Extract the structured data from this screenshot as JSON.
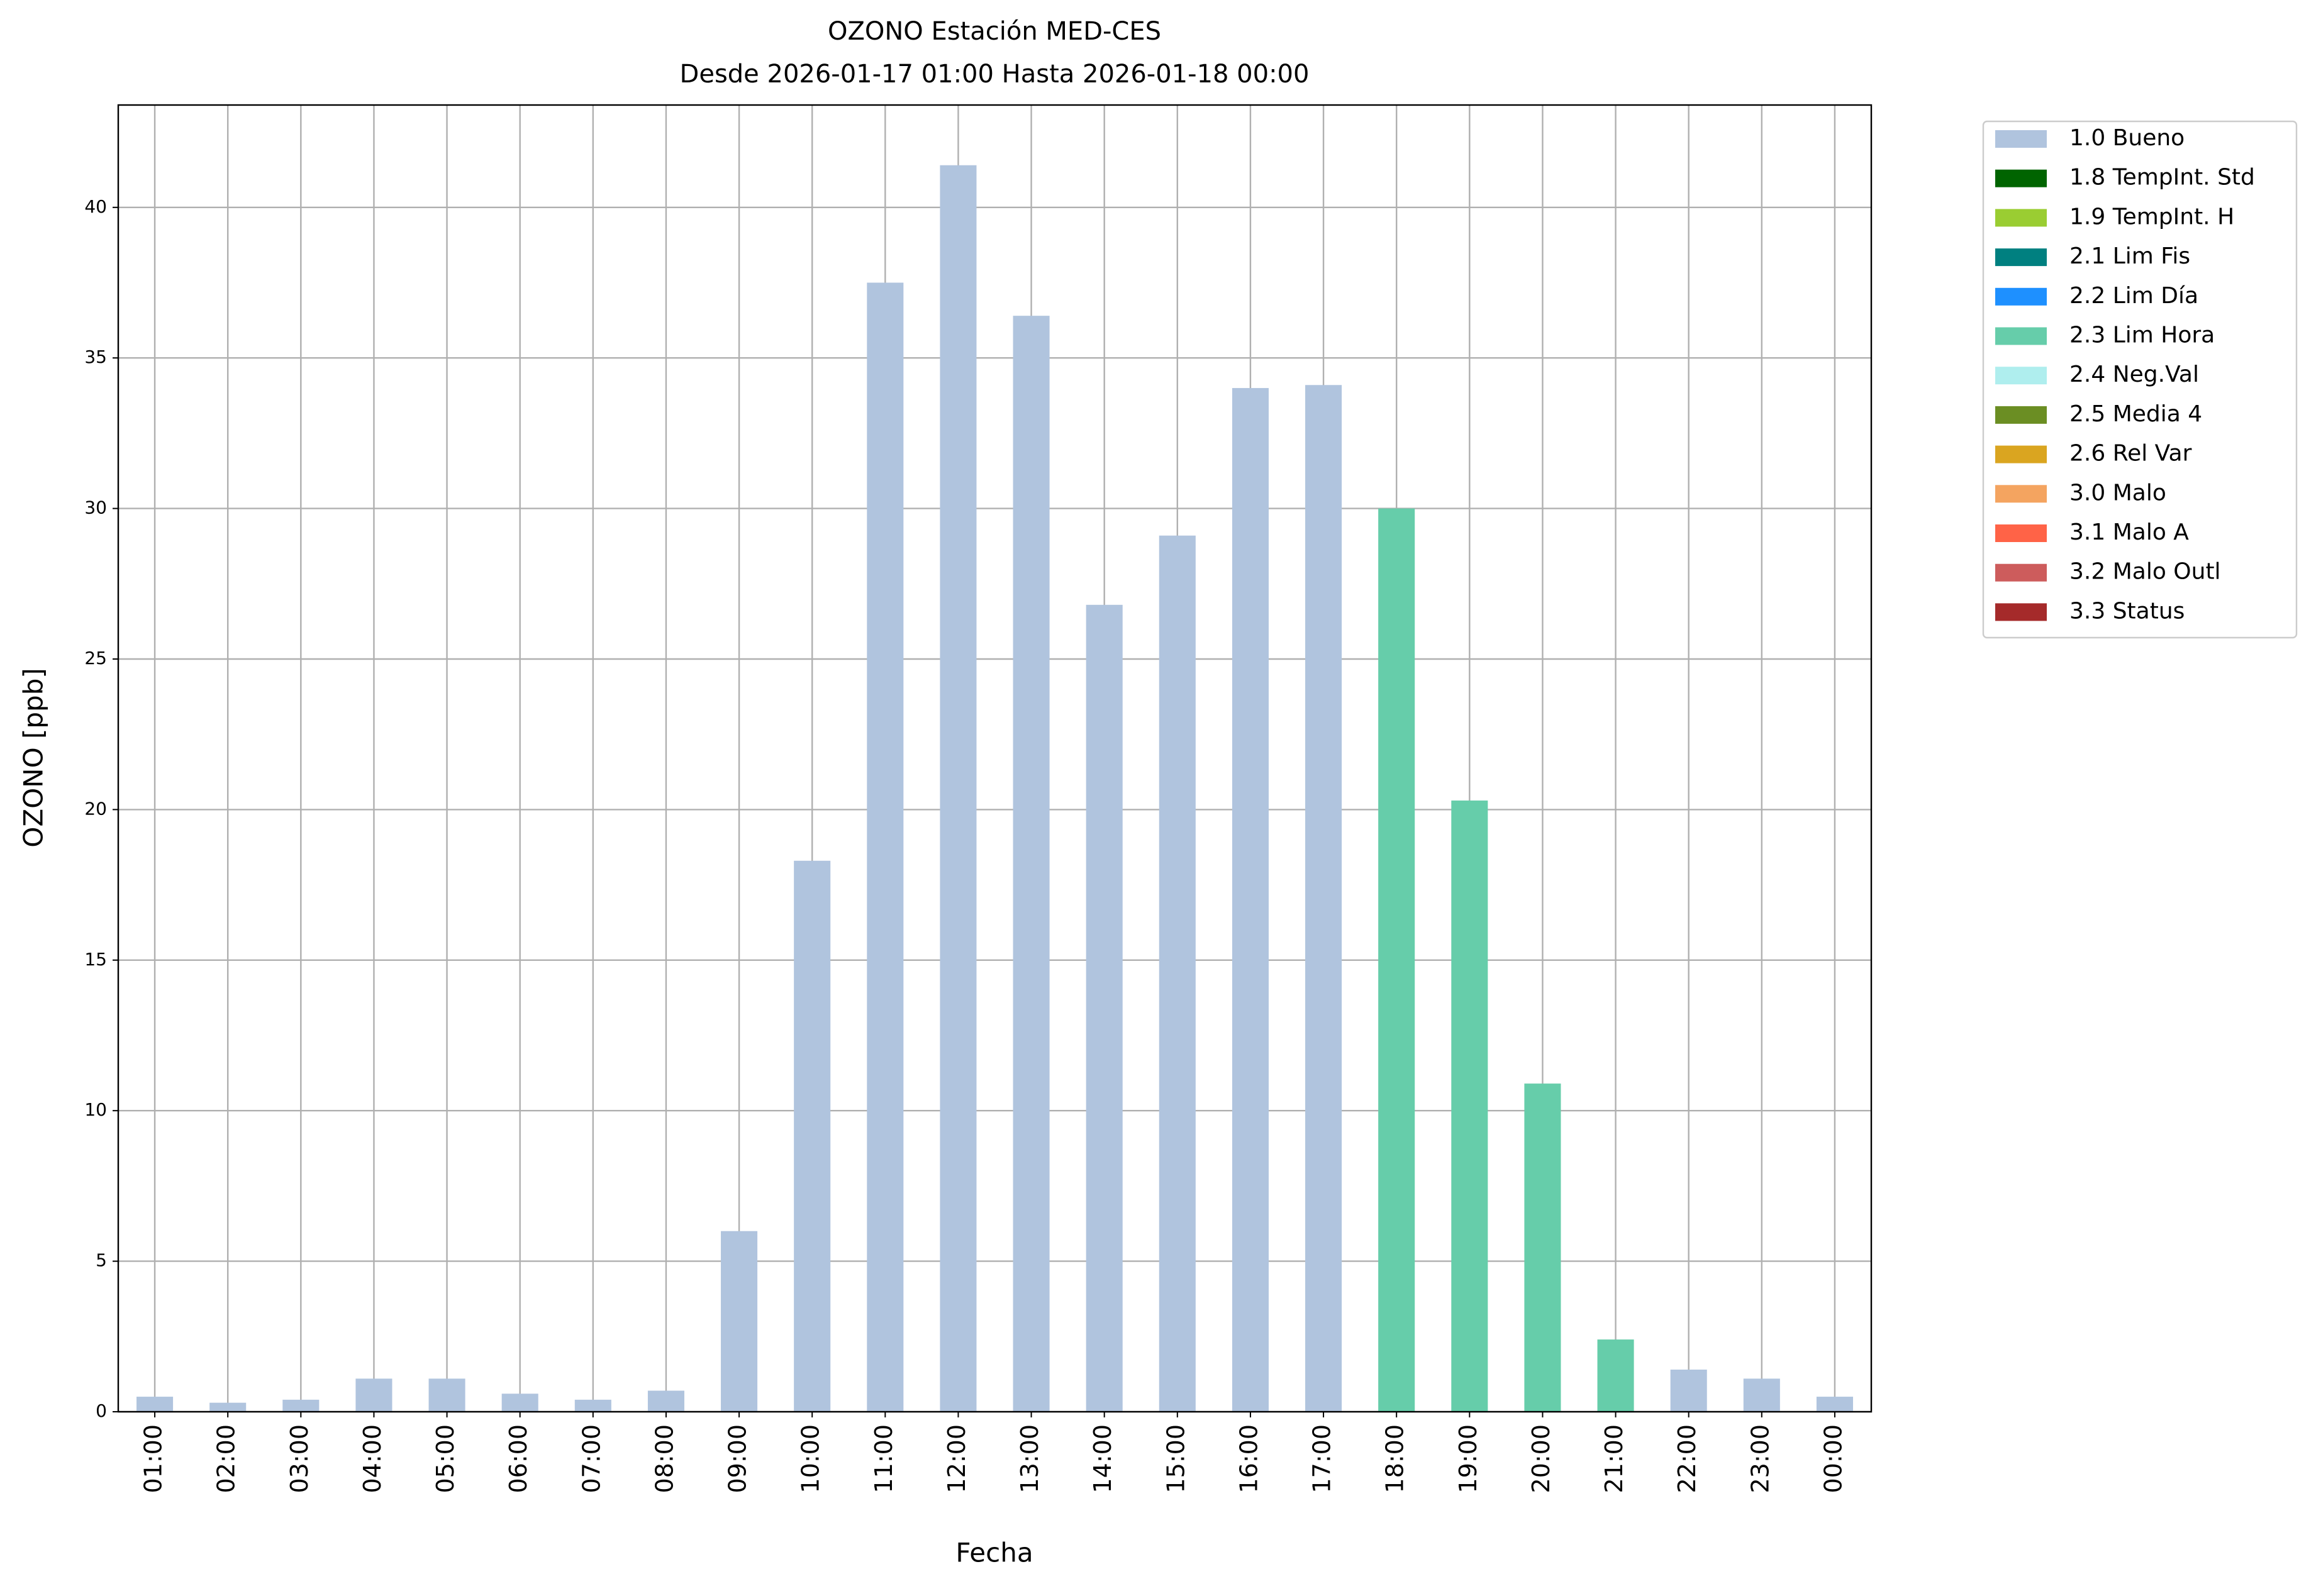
{
  "chart_data": {
    "type": "bar",
    "stacked": true,
    "title": "OZONO Estación MED-CES",
    "subtitle": "Desde 2026-01-17 01:00 Hasta 2026-01-18 00:00",
    "x_label": "Fecha",
    "y_label": "OZONO [ppb]",
    "categories": [
      "01:00",
      "02:00",
      "03:00",
      "04:00",
      "05:00",
      "06:00",
      "07:00",
      "08:00",
      "09:00",
      "10:00",
      "11:00",
      "12:00",
      "13:00",
      "14:00",
      "15:00",
      "16:00",
      "17:00",
      "18:00",
      "19:00",
      "20:00",
      "21:00",
      "22:00",
      "23:00",
      "00:00"
    ],
    "series": [
      {
        "name": "1.0 Bueno",
        "color": "#b0c4de",
        "values": [
          0.5,
          0.3,
          0.4,
          1.1,
          1.1,
          0.6,
          0.4,
          0.7,
          6.0,
          18.3,
          37.5,
          41.4,
          36.4,
          26.8,
          29.1,
          34.0,
          34.1,
          null,
          null,
          null,
          null,
          1.4,
          1.1,
          0.5
        ]
      },
      {
        "name": "1.8 TempInt. Std",
        "color": "#006400",
        "values": [
          null,
          null,
          null,
          null,
          null,
          null,
          null,
          null,
          null,
          null,
          null,
          null,
          null,
          null,
          null,
          null,
          null,
          null,
          null,
          null,
          null,
          null,
          null,
          null
        ]
      },
      {
        "name": "1.9 TempInt. H",
        "color": "#9acd32",
        "values": [
          null,
          null,
          null,
          null,
          null,
          null,
          null,
          null,
          null,
          null,
          null,
          null,
          null,
          null,
          null,
          null,
          null,
          null,
          null,
          null,
          null,
          null,
          null,
          null
        ]
      },
      {
        "name": "2.1 Lim Fis",
        "color": "#008080",
        "values": [
          null,
          null,
          null,
          null,
          null,
          null,
          null,
          null,
          null,
          null,
          null,
          null,
          null,
          null,
          null,
          null,
          null,
          null,
          null,
          null,
          null,
          null,
          null,
          null
        ]
      },
      {
        "name": "2.2 Lim Día",
        "color": "#1e90ff",
        "values": [
          null,
          null,
          null,
          null,
          null,
          null,
          null,
          null,
          null,
          null,
          null,
          null,
          null,
          null,
          null,
          null,
          null,
          null,
          null,
          null,
          null,
          null,
          null,
          null
        ]
      },
      {
        "name": "2.3 Lim Hora",
        "color": "#66cdaa",
        "values": [
          null,
          null,
          null,
          null,
          null,
          null,
          null,
          null,
          null,
          null,
          null,
          null,
          null,
          null,
          null,
          null,
          null,
          30.0,
          20.3,
          10.9,
          2.4,
          null,
          null,
          null
        ]
      },
      {
        "name": "2.4 Neg.Val",
        "color": "#afeeee",
        "values": [
          null,
          null,
          null,
          null,
          null,
          null,
          null,
          null,
          null,
          null,
          null,
          null,
          null,
          null,
          null,
          null,
          null,
          null,
          null,
          null,
          null,
          null,
          null,
          null
        ]
      },
      {
        "name": "2.5 Media 4",
        "color": "#6b8e23",
        "values": [
          null,
          null,
          null,
          null,
          null,
          null,
          null,
          null,
          null,
          null,
          null,
          null,
          null,
          null,
          null,
          null,
          null,
          null,
          null,
          null,
          null,
          null,
          null,
          null
        ]
      },
      {
        "name": "2.6 Rel Var",
        "color": "#daa520",
        "values": [
          null,
          null,
          null,
          null,
          null,
          null,
          null,
          null,
          null,
          null,
          null,
          null,
          null,
          null,
          null,
          null,
          null,
          null,
          null,
          null,
          null,
          null,
          null,
          null
        ]
      },
      {
        "name": "3.0 Malo",
        "color": "#f4a460",
        "values": [
          null,
          null,
          null,
          null,
          null,
          null,
          null,
          null,
          null,
          null,
          null,
          null,
          null,
          null,
          null,
          null,
          null,
          null,
          null,
          null,
          null,
          null,
          null,
          null
        ]
      },
      {
        "name": "3.1 Malo A",
        "color": "#ff6347",
        "values": [
          null,
          null,
          null,
          null,
          null,
          null,
          null,
          null,
          null,
          null,
          null,
          null,
          null,
          null,
          null,
          null,
          null,
          null,
          null,
          null,
          null,
          null,
          null,
          null
        ]
      },
      {
        "name": "3.2 Malo Outl",
        "color": "#cd5c5c",
        "values": [
          null,
          null,
          null,
          null,
          null,
          null,
          null,
          null,
          null,
          null,
          null,
          null,
          null,
          null,
          null,
          null,
          null,
          null,
          null,
          null,
          null,
          null,
          null,
          null
        ]
      },
      {
        "name": "3.3 Status",
        "color": "#a52a2a",
        "values": [
          null,
          null,
          null,
          null,
          null,
          null,
          null,
          null,
          null,
          null,
          null,
          null,
          null,
          null,
          null,
          null,
          null,
          null,
          null,
          null,
          null,
          null,
          null,
          null
        ]
      }
    ],
    "ylim": [
      0,
      43.4
    ],
    "yticks": [
      0,
      5,
      10,
      15,
      20,
      25,
      30,
      35,
      40
    ],
    "grid": true,
    "legend": "outside-right"
  }
}
